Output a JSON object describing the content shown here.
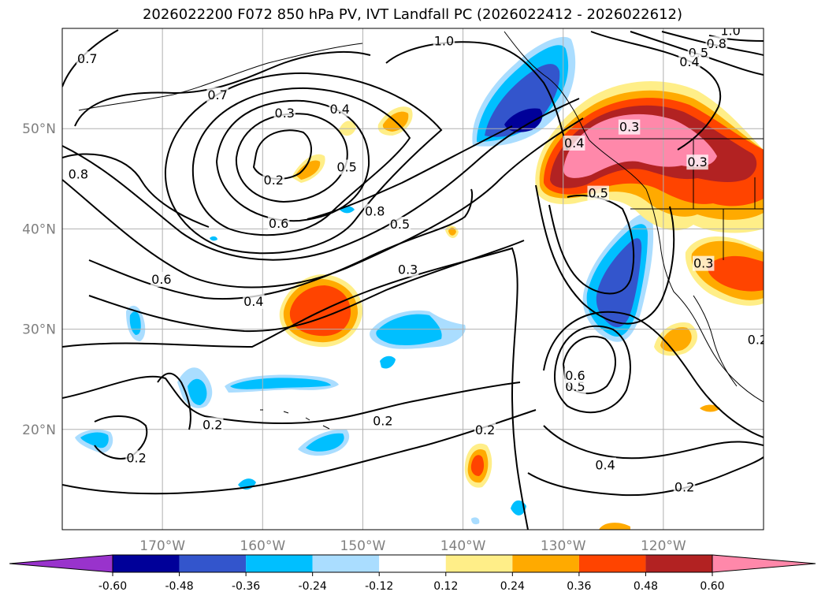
{
  "title": "2026022200 F072 850 hPa PV, IVT Landfall PC (2026022412 - 2026022612)",
  "map": {
    "lon_range": [
      -180,
      -110
    ],
    "lat_range": [
      10,
      60
    ],
    "lon_ticks": [
      {
        "lon": -170,
        "label": "170°W"
      },
      {
        "lon": -160,
        "label": "160°W"
      },
      {
        "lon": -150,
        "label": "150°W"
      },
      {
        "lon": -140,
        "label": "140°W"
      },
      {
        "lon": -130,
        "label": "130°W"
      },
      {
        "lon": -120,
        "label": "120°W"
      }
    ],
    "lat_ticks": [
      {
        "lat": 50,
        "label": "50°N"
      },
      {
        "lat": 40,
        "label": "40°N"
      },
      {
        "lat": 30,
        "label": "30°N"
      },
      {
        "lat": 20,
        "label": "20°N"
      }
    ],
    "contour_labels": [
      {
        "text": "0.7",
        "lon": -177.5,
        "lat": 57.0
      },
      {
        "text": "0.7",
        "lon": -164.5,
        "lat": 53.4
      },
      {
        "text": "0.3",
        "lon": -157.8,
        "lat": 51.6
      },
      {
        "text": "0.4",
        "lon": -152.3,
        "lat": 52.0
      },
      {
        "text": "0.2",
        "lon": -158.9,
        "lat": 44.9
      },
      {
        "text": "0.5",
        "lon": -151.6,
        "lat": 46.2
      },
      {
        "text": "0.8",
        "lon": -178.4,
        "lat": 45.5
      },
      {
        "text": "0.8",
        "lon": -148.8,
        "lat": 41.8
      },
      {
        "text": "0.6",
        "lon": -158.4,
        "lat": 40.6
      },
      {
        "text": "0.5",
        "lon": -146.3,
        "lat": 40.5
      },
      {
        "text": "1.0",
        "lon": -141.9,
        "lat": 58.8
      },
      {
        "text": "0.6",
        "lon": -170.1,
        "lat": 35.0
      },
      {
        "text": "0.4",
        "lon": -160.9,
        "lat": 32.8
      },
      {
        "text": "0.3",
        "lon": -145.5,
        "lat": 36.0
      },
      {
        "text": "0.3",
        "lon": -123.4,
        "lat": 50.2
      },
      {
        "text": "0.4",
        "lon": -128.9,
        "lat": 48.6
      },
      {
        "text": "0.5",
        "lon": -126.5,
        "lat": 43.6
      },
      {
        "text": "0.3",
        "lon": -116.6,
        "lat": 46.7
      },
      {
        "text": "1.0",
        "lon": -113.3,
        "lat": 59.8
      },
      {
        "text": "0.8",
        "lon": -114.7,
        "lat": 58.5
      },
      {
        "text": "0.5",
        "lon": -116.5,
        "lat": 57.6
      },
      {
        "text": "0.4",
        "lon": -117.4,
        "lat": 56.7
      },
      {
        "text": "0.3",
        "lon": -116.0,
        "lat": 36.6
      },
      {
        "text": "0.2",
        "lon": -110.6,
        "lat": 29.0
      },
      {
        "text": "0.5",
        "lon": -128.8,
        "lat": 24.3
      },
      {
        "text": "0.6",
        "lon": -128.8,
        "lat": 25.4
      },
      {
        "text": "0.4",
        "lon": -125.8,
        "lat": 16.5
      },
      {
        "text": "0.2",
        "lon": -117.9,
        "lat": 14.3
      },
      {
        "text": "0.2",
        "lon": -148.0,
        "lat": 20.9
      },
      {
        "text": "0.2",
        "lon": -165.0,
        "lat": 20.5
      },
      {
        "text": "0.2",
        "lon": -172.6,
        "lat": 17.2
      },
      {
        "text": "0.2",
        "lon": -137.8,
        "lat": 20.0
      }
    ]
  },
  "colorbar": {
    "colors": [
      "#9933cc",
      "#000099",
      "#3355cc",
      "#00bfff",
      "#aaddff",
      "#ffffff",
      "#ffee88",
      "#ffaa00",
      "#ff4400",
      "#b22222",
      "#ff88aa"
    ],
    "ticks": [
      "-0.60",
      "-0.48",
      "-0.36",
      "-0.24",
      "-0.12",
      "0.12",
      "0.24",
      "0.36",
      "0.48",
      "0.60"
    ]
  }
}
